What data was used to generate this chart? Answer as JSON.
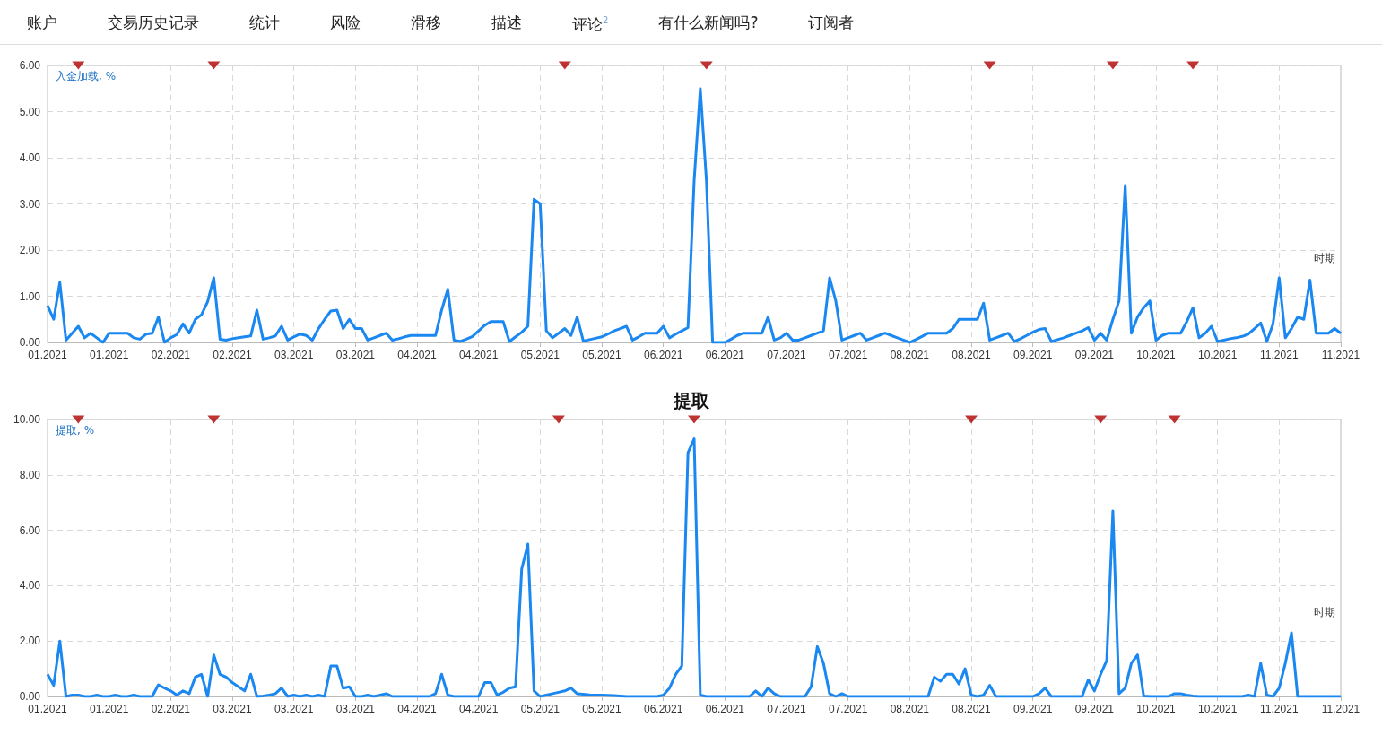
{
  "chart_data": [
    {
      "type": "other",
      "annotations": [
        "账户",
        "交易历史记录",
        "统计",
        "风险",
        "滑移",
        "描述",
        "评论$^{2}$",
        "有什么新闻吗?",
        "订阅者"
      ]
    },
    {
      "type": "line",
      "ylabel": "入金加载, %",
      "xlabel": "时期",
      "grid": true,
      "ylim": [
        0,
        6
      ],
      "categories": [
        "01.2021",
        null,
        null,
        null,
        null,
        null,
        null,
        null,
        null,
        null,
        "01.2021",
        null,
        null,
        null,
        null,
        null,
        null,
        null,
        null,
        null,
        "02.2021",
        null,
        null,
        null,
        null,
        null,
        null,
        null,
        null,
        null,
        "02.2021",
        null,
        null,
        null,
        null,
        null,
        null,
        null,
        null,
        null,
        "03.2021",
        null,
        null,
        null,
        null,
        null,
        null,
        null,
        null,
        null,
        "03.2021",
        null,
        null,
        null,
        null,
        null,
        null,
        null,
        null,
        null,
        "04.2021",
        null,
        null,
        null,
        null,
        null,
        null,
        null,
        null,
        null,
        "04.2021",
        null,
        null,
        null,
        null,
        null,
        null,
        null,
        null,
        null,
        "05.2021",
        null,
        null,
        null,
        null,
        null,
        null,
        null,
        null,
        null,
        "05.2021",
        null,
        null,
        null,
        null,
        null,
        null,
        null,
        null,
        null,
        "06.2021",
        null,
        null,
        null,
        null,
        null,
        null,
        null,
        null,
        null,
        "06.2021",
        null,
        null,
        null,
        null,
        null,
        null,
        null,
        null,
        null,
        "07.2021",
        null,
        null,
        null,
        null,
        null,
        null,
        null,
        null,
        null,
        "07.2021",
        null,
        null,
        null,
        null,
        null,
        null,
        null,
        null,
        null,
        "08.2021",
        null,
        null,
        null,
        null,
        null,
        null,
        null,
        null,
        null,
        "08.2021",
        null,
        null,
        null,
        null,
        null,
        null,
        null,
        null,
        null,
        "09.2021",
        null,
        null,
        null,
        null,
        null,
        null,
        null,
        null,
        null,
        "09.2021",
        null,
        null,
        null,
        null,
        null,
        null,
        null,
        null,
        null,
        "10.2021",
        null,
        null,
        null,
        null,
        null,
        null,
        null,
        null,
        null,
        "10.2021",
        null,
        null,
        null,
        null,
        null,
        null,
        null,
        null,
        null,
        "11.2021",
        null,
        null,
        null,
        null,
        null,
        null,
        null,
        null,
        null,
        "11.2021"
      ],
      "yticks": [
        {
          "value": 0,
          "label": "0.00"
        },
        {
          "value": 1,
          "label": "1.00"
        },
        {
          "value": 2,
          "label": "2.00"
        },
        {
          "value": 3,
          "label": "3.00"
        },
        {
          "value": 4,
          "label": "4.00"
        },
        {
          "value": 5,
          "label": "5.00"
        },
        {
          "value": 6,
          "label": "6.00"
        }
      ],
      "series": [
        {
          "type": "line",
          "marker": "none",
          "color": "#1a88f0",
          "values": [
            0.8,
            0.5,
            1.3,
            0.05,
            0.2,
            0.35,
            0.1,
            0.2,
            0.1,
            0,
            0.2,
            0.2,
            0.2,
            0.2,
            0.1,
            0.07,
            0.18,
            0.2,
            0.55,
            0,
            0.1,
            0.17,
            0.4,
            0.2,
            0.5,
            0.6,
            0.88,
            1.4,
            0.07,
            0.05,
            0.08,
            0.1,
            0.12,
            0.14,
            0.7,
            0.07,
            0.1,
            0.14,
            0.35,
            0.05,
            0.12,
            0.18,
            0.15,
            0.05,
            0.3,
            0.5,
            0.68,
            0.7,
            0.3,
            0.5,
            0.3,
            0.3,
            0.05,
            0.1,
            0.15,
            0.2,
            0.05,
            0.08,
            0.12,
            0.15,
            0.15,
            0.15,
            0.15,
            0.15,
            0.7,
            1.15,
            0.05,
            0.02,
            0.07,
            0.13,
            0.25,
            0.37,
            0.45,
            0.45,
            0.45,
            0.02,
            0.12,
            0.22,
            0.35,
            3.1,
            3,
            0.25,
            0.1,
            0.2,
            0.3,
            0.15,
            0.55,
            0.03,
            0.06,
            0.09,
            0.12,
            0.18,
            0.25,
            0.3,
            0.35,
            0.05,
            0.12,
            0.2,
            0.2,
            0.2,
            0.35,
            0.1,
            0.18,
            0.25,
            0.32,
            3.5,
            5.5,
            3.5,
            0,
            0,
            0,
            0.07,
            0.15,
            0.2,
            0.2,
            0.2,
            0.2,
            0.55,
            0.05,
            0.1,
            0.2,
            0.05,
            0.05,
            0.1,
            0.15,
            0.2,
            0.25,
            1.4,
            0.9,
            0.05,
            0.1,
            0.15,
            0.2,
            0.05,
            0.1,
            0.15,
            0.2,
            0.15,
            0.1,
            0.05,
            0,
            0.06,
            0.13,
            0.2,
            0.2,
            0.2,
            0.2,
            0.3,
            0.5,
            0.5,
            0.5,
            0.5,
            0.85,
            0.05,
            0.1,
            0.15,
            0.2,
            0.02,
            0.08,
            0.15,
            0.22,
            0.28,
            0.3,
            0.02,
            0.06,
            0.1,
            0.15,
            0.2,
            0.25,
            0.32,
            0.05,
            0.2,
            0.05,
            0.5,
            0.9,
            3.4,
            0.2,
            0.55,
            0.75,
            0.9,
            0.05,
            0.15,
            0.2,
            0.2,
            0.2,
            0.45,
            0.75,
            0.1,
            0.2,
            0.35,
            0.02,
            0.05,
            0.08,
            0.1,
            0.13,
            0.18,
            0.3,
            0.42,
            0.02,
            0.4,
            1.4,
            0.1,
            0.3,
            0.55,
            0.5,
            1.35,
            0.2,
            0.2,
            0.2,
            0.3,
            0.2
          ]
        },
        {
          "type": "scatter",
          "marker": "triangle",
          "color": "#b00000",
          "values": [
            null,
            null,
            null,
            null,
            null,
            6,
            null,
            null,
            null,
            null,
            null,
            null,
            null,
            null,
            null,
            null,
            null,
            null,
            null,
            null,
            null,
            null,
            null,
            null,
            null,
            null,
            null,
            6,
            null,
            null,
            null,
            null,
            null,
            null,
            null,
            null,
            null,
            null,
            null,
            null,
            null,
            null,
            null,
            null,
            null,
            null,
            null,
            null,
            null,
            null,
            null,
            null,
            null,
            null,
            null,
            null,
            null,
            null,
            null,
            null,
            null,
            null,
            null,
            null,
            null,
            null,
            null,
            null,
            null,
            null,
            null,
            null,
            null,
            null,
            null,
            null,
            null,
            null,
            null,
            null,
            null,
            null,
            null,
            null,
            6,
            null,
            null,
            null,
            null,
            null,
            null,
            null,
            null,
            null,
            null,
            null,
            null,
            null,
            null,
            null,
            null,
            null,
            null,
            null,
            null,
            null,
            null,
            6,
            null,
            null,
            null,
            null,
            null,
            null,
            null,
            null,
            null,
            null,
            null,
            null,
            null,
            null,
            null,
            null,
            null,
            null,
            null,
            null,
            null,
            null,
            null,
            null,
            null,
            null,
            null,
            null,
            null,
            null,
            null,
            null,
            null,
            null,
            null,
            null,
            null,
            null,
            null,
            null,
            null,
            null,
            null,
            null,
            null,
            6,
            null,
            null,
            null,
            null,
            null,
            null,
            null,
            null,
            null,
            null,
            null,
            null,
            null,
            null,
            null,
            null,
            null,
            null,
            null,
            6,
            null,
            null,
            null,
            null,
            null,
            null,
            null,
            null,
            null,
            null,
            null,
            null,
            6,
            null,
            null,
            null,
            null,
            null,
            null,
            null,
            null,
            null,
            null,
            null,
            null,
            null,
            null,
            null,
            null,
            null,
            null,
            null,
            null,
            null,
            null,
            null,
            null
          ]
        }
      ]
    },
    {
      "type": "line",
      "title": "提取",
      "ylabel": "提取, %",
      "xlabel": "时期",
      "grid": true,
      "ylim": [
        0,
        10
      ],
      "categories": [
        "01.2021",
        null,
        null,
        null,
        null,
        null,
        null,
        null,
        null,
        null,
        "01.2021",
        null,
        null,
        null,
        null,
        null,
        null,
        null,
        null,
        null,
        "02.2021",
        null,
        null,
        null,
        null,
        null,
        null,
        null,
        null,
        null,
        "03.2021",
        null,
        null,
        null,
        null,
        null,
        null,
        null,
        null,
        null,
        "03.2021",
        null,
        null,
        null,
        null,
        null,
        null,
        null,
        null,
        null,
        "03.2021",
        null,
        null,
        null,
        null,
        null,
        null,
        null,
        null,
        null,
        "04.2021",
        null,
        null,
        null,
        null,
        null,
        null,
        null,
        null,
        null,
        "04.2021",
        null,
        null,
        null,
        null,
        null,
        null,
        null,
        null,
        null,
        "05.2021",
        null,
        null,
        null,
        null,
        null,
        null,
        null,
        null,
        null,
        "05.2021",
        null,
        null,
        null,
        null,
        null,
        null,
        null,
        null,
        null,
        "06.2021",
        null,
        null,
        null,
        null,
        null,
        null,
        null,
        null,
        null,
        "06.2021",
        null,
        null,
        null,
        null,
        null,
        null,
        null,
        null,
        null,
        "07.2021",
        null,
        null,
        null,
        null,
        null,
        null,
        null,
        null,
        null,
        "07.2021",
        null,
        null,
        null,
        null,
        null,
        null,
        null,
        null,
        null,
        "08.2021",
        null,
        null,
        null,
        null,
        null,
        null,
        null,
        null,
        null,
        "08.2021",
        null,
        null,
        null,
        null,
        null,
        null,
        null,
        null,
        null,
        "09.2021",
        null,
        null,
        null,
        null,
        null,
        null,
        null,
        null,
        null,
        "09.2021",
        null,
        null,
        null,
        null,
        null,
        null,
        null,
        null,
        null,
        "10.2021",
        null,
        null,
        null,
        null,
        null,
        null,
        null,
        null,
        null,
        "10.2021",
        null,
        null,
        null,
        null,
        null,
        null,
        null,
        null,
        null,
        "11.2021",
        null,
        null,
        null,
        null,
        null,
        null,
        null,
        null,
        null,
        "11.2021"
      ],
      "yticks": [
        {
          "value": 0,
          "label": "0.00"
        },
        {
          "value": 2,
          "label": "2.00"
        },
        {
          "value": 4,
          "label": "4.00"
        },
        {
          "value": 6,
          "label": "6.00"
        },
        {
          "value": 8,
          "label": "8.00"
        },
        {
          "value": 10,
          "label": "10.00"
        }
      ],
      "series": [
        {
          "type": "line",
          "marker": "none",
          "color": "#1a88f0",
          "values": [
            0.8,
            0.4,
            2,
            0,
            0.05,
            0.05,
            0,
            0,
            0.05,
            0,
            0,
            0.05,
            0,
            0,
            0.05,
            0,
            0,
            0,
            0.42,
            0.3,
            0.2,
            0.05,
            0.2,
            0.1,
            0.7,
            0.8,
            0,
            1.5,
            0.8,
            0.7,
            0.5,
            0.35,
            0.2,
            0.8,
            0,
            0.02,
            0.05,
            0.1,
            0.3,
            0,
            0.05,
            0,
            0.05,
            0,
            0.05,
            0,
            1.1,
            1.1,
            0.3,
            0.35,
            0,
            0,
            0.05,
            0,
            0.05,
            0.1,
            0,
            0,
            0,
            0,
            0,
            0,
            0,
            0.1,
            0.8,
            0.05,
            0,
            0,
            0,
            0,
            0,
            0.5,
            0.5,
            0.05,
            0.15,
            0.3,
            0.35,
            4.6,
            5.5,
            0.2,
            0,
            0.05,
            0.1,
            0.15,
            0.2,
            0.3,
            0.1,
            0.08,
            0.06,
            0.05,
            0.05,
            0.04,
            0.03,
            0.02,
            0,
            0,
            0,
            0,
            0,
            0,
            0.05,
            0.3,
            0.8,
            1.1,
            8.8,
            9.3,
            0.05,
            0,
            0,
            0,
            0,
            0,
            0,
            0,
            0,
            0.2,
            0,
            0.3,
            0.1,
            0,
            0,
            0,
            0,
            0,
            0.35,
            1.8,
            1.2,
            0.1,
            0,
            0.1,
            0,
            0,
            0,
            0,
            0,
            0,
            0,
            0,
            0,
            0,
            0,
            0,
            0,
            0,
            0.7,
            0.55,
            0.8,
            0.8,
            0.45,
            1,
            0.05,
            0,
            0.05,
            0.4,
            0,
            0,
            0,
            0,
            0,
            0,
            0,
            0.1,
            0.3,
            0,
            0,
            0,
            0,
            0,
            0,
            0.6,
            0.2,
            0.8,
            1.3,
            6.7,
            0.1,
            0.3,
            1.2,
            1.5,
            0.02,
            0,
            0,
            0,
            0,
            0.1,
            0.1,
            0.05,
            0.02,
            0,
            0,
            0,
            0,
            0,
            0,
            0,
            0,
            0.05,
            0,
            1.2,
            0.05,
            0,
            0.3,
            1.2,
            2.3,
            0,
            0,
            0,
            0,
            0,
            0,
            0,
            0
          ]
        },
        {
          "type": "scatter",
          "marker": "triangle",
          "color": "#b00000",
          "values": [
            null,
            null,
            null,
            null,
            null,
            10,
            null,
            null,
            null,
            null,
            null,
            null,
            null,
            null,
            null,
            null,
            null,
            null,
            null,
            null,
            null,
            null,
            null,
            null,
            null,
            null,
            null,
            10,
            null,
            null,
            null,
            null,
            null,
            null,
            null,
            null,
            null,
            null,
            null,
            null,
            null,
            null,
            null,
            null,
            null,
            null,
            null,
            null,
            null,
            null,
            null,
            null,
            null,
            null,
            null,
            null,
            null,
            null,
            null,
            null,
            null,
            null,
            null,
            null,
            null,
            null,
            null,
            null,
            null,
            null,
            null,
            null,
            null,
            null,
            null,
            null,
            null,
            null,
            null,
            null,
            null,
            null,
            null,
            10,
            null,
            null,
            null,
            null,
            null,
            null,
            null,
            null,
            null,
            null,
            null,
            null,
            null,
            null,
            null,
            null,
            null,
            null,
            null,
            null,
            null,
            10,
            null,
            null,
            null,
            null,
            null,
            null,
            null,
            null,
            null,
            null,
            null,
            null,
            null,
            null,
            null,
            null,
            null,
            null,
            null,
            null,
            null,
            null,
            null,
            null,
            null,
            null,
            null,
            null,
            null,
            null,
            null,
            null,
            null,
            null,
            null,
            null,
            null,
            null,
            null,
            null,
            null,
            null,
            null,
            null,
            10,
            null,
            null,
            null,
            null,
            null,
            null,
            null,
            null,
            null,
            null,
            null,
            null,
            null,
            null,
            null,
            null,
            null,
            null,
            null,
            null,
            10,
            null,
            null,
            null,
            null,
            null,
            null,
            null,
            null,
            null,
            null,
            null,
            10,
            null,
            null,
            null,
            null,
            null,
            null,
            null,
            null,
            null,
            null,
            null,
            null,
            null,
            null,
            null,
            null,
            null,
            null,
            null,
            null,
            null,
            null,
            null,
            null,
            null,
            null,
            null
          ]
        }
      ]
    }
  ]
}
